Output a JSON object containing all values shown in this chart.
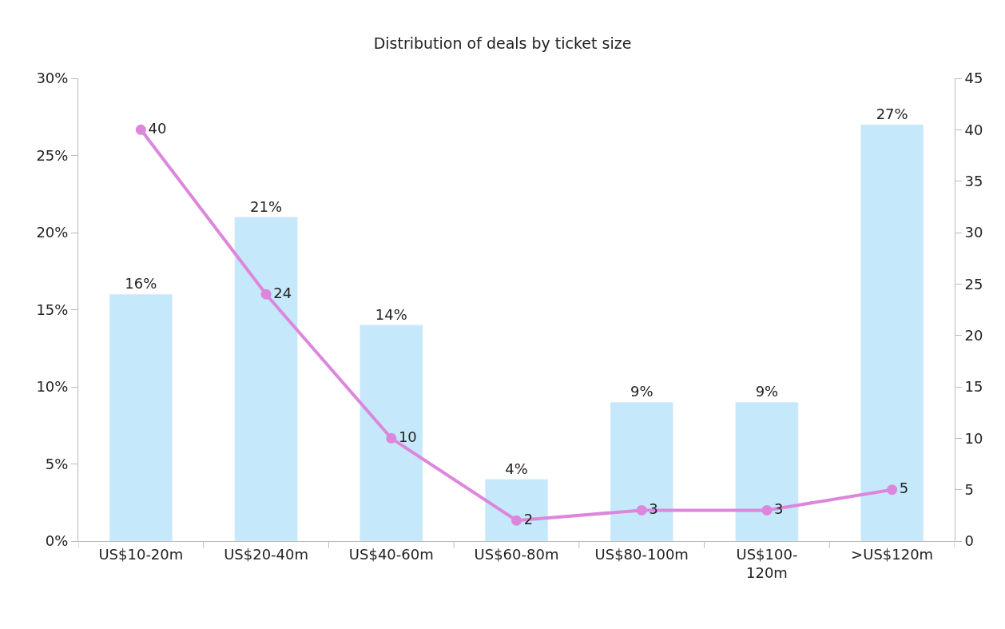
{
  "chart_data": {
    "type": "bar",
    "title": "Distribution of deals by ticket size",
    "categories": [
      "US$10-20m",
      "US$20-40m",
      "US$40-60m",
      "US$60-80m",
      "US$80-100m",
      "US$100-120m",
      ">US$120m"
    ],
    "series": [
      {
        "color": "#c5e9fb",
        "values": [
          16,
          21,
          14,
          4,
          9,
          9,
          27
        ],
        "value_labels": [
          "16%",
          "21%",
          "14%",
          "4%",
          "9%",
          "9%",
          "27%"
        ]
      },
      {
        "type": "line",
        "axis": "y2",
        "color": "#dc87dc",
        "marker": "circle",
        "values": [
          40,
          24,
          10,
          2,
          3,
          3,
          5
        ]
      }
    ],
    "data_labels": true,
    "ylim": [
      0,
      30
    ],
    "yticks": [
      {
        "value": 0,
        "label": "0%"
      },
      {
        "value": 5,
        "label": "5%"
      },
      {
        "value": 10,
        "label": "10%"
      },
      {
        "value": 15,
        "label": "15%"
      },
      {
        "value": 20,
        "label": "20%"
      },
      {
        "value": 25,
        "label": "25%"
      },
      {
        "value": 30,
        "label": "30%"
      }
    ],
    "y2lim": [
      0,
      45
    ],
    "y2ticks": [
      0,
      5,
      10,
      15,
      20,
      25,
      30,
      35,
      40,
      45
    ]
  }
}
